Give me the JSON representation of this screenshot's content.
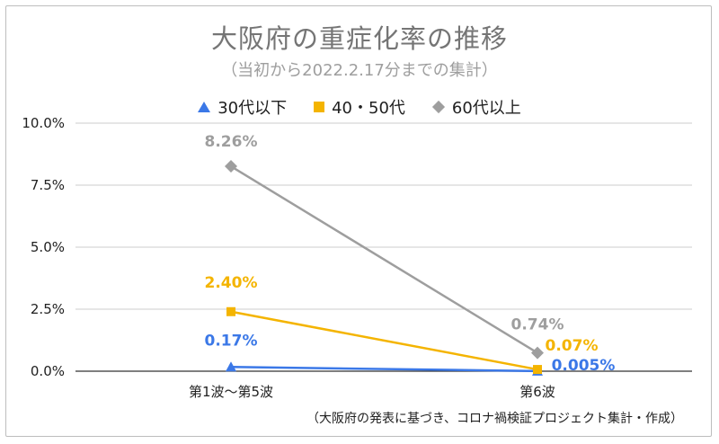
{
  "chart_data": {
    "type": "line",
    "title": "大阪府の重症化率の推移",
    "subtitle": "（当初から2022.2.17分までの集計）",
    "categories": [
      "第1波〜第5波",
      "第6波"
    ],
    "ylim": [
      0,
      10
    ],
    "yticks": [
      "0.0%",
      "2.5%",
      "5.0%",
      "7.5%",
      "10.0%"
    ],
    "ytick_values": [
      0,
      2.5,
      5,
      7.5,
      10
    ],
    "grid": true,
    "legend_position": "top",
    "series": [
      {
        "name": "30代以下",
        "values": [
          0.17,
          0.005
        ],
        "labels": [
          "0.17%",
          "0.005%"
        ],
        "color": "#3b78e7",
        "marker": "triangle"
      },
      {
        "name": "40・50代",
        "values": [
          2.4,
          0.07
        ],
        "labels": [
          "2.40%",
          "0.07%"
        ],
        "color": "#f4b400",
        "marker": "square"
      },
      {
        "name": "60代以上",
        "values": [
          8.26,
          0.74
        ],
        "labels": [
          "8.26%",
          "0.74%"
        ],
        "color": "#9e9e9e",
        "marker": "diamond"
      }
    ],
    "source": "（大阪府の発表に基づき、コロナ禍検証プロジェクト集計・作成）"
  }
}
